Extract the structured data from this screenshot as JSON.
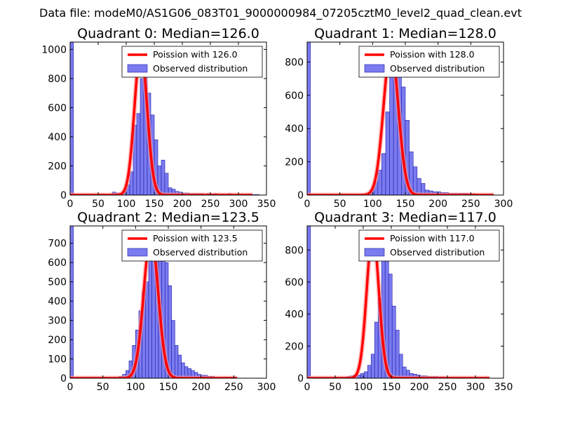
{
  "suptitle": "Data file: modeM0/AS1G06_083T01_9000000984_07205cztM0_level2_quad_clean.evt",
  "colors": {
    "bar_fill": "#7b7bf0",
    "bar_edge": "#1a1aa8",
    "poisson_line": "#ff0000",
    "poisson_halo": "#ff9a9a"
  },
  "chart_data": [
    {
      "type": "bar",
      "title": "Quadrant 0: Median=126.0",
      "legend": [
        "Poission with 126.0",
        "Observed distribution"
      ],
      "legend_position": "top-right",
      "xlim": [
        0,
        350
      ],
      "ylim": [
        0,
        1050
      ],
      "xticks": [
        0,
        50,
        100,
        150,
        200,
        250,
        300,
        350
      ],
      "yticks": [
        0,
        200,
        400,
        600,
        800,
        1000
      ],
      "bin_width": 6.25,
      "bin_start": 75,
      "counts": [
        20,
        15,
        10,
        25,
        70,
        160,
        480,
        560,
        800,
        850,
        700,
        550,
        380,
        200,
        240,
        150,
        50,
        40,
        25,
        20,
        15,
        15,
        10,
        10,
        10,
        10,
        5,
        10,
        5,
        10,
        5,
        5,
        5,
        10,
        5,
        5,
        5,
        5,
        5,
        3,
        3,
        3
      ],
      "edge_bar": {
        "x": 0,
        "width": 6,
        "value": 1050
      },
      "poisson": {
        "mean": 126.0,
        "peak": 1000,
        "sigma": 11.2,
        "x_range": [
          0,
          325
        ]
      }
    },
    {
      "type": "bar",
      "title": "Quadrant 1: Median=128.0",
      "legend": [
        "Poission with 128.0",
        "Observed distribution"
      ],
      "legend_position": "top-right",
      "xlim": [
        0,
        300
      ],
      "ylim": [
        0,
        920
      ],
      "xticks": [
        0,
        50,
        100,
        150,
        200,
        250,
        300
      ],
      "yticks": [
        0,
        200,
        400,
        600,
        800
      ],
      "bin_width": 6,
      "bin_start": 84,
      "counts": [
        5,
        10,
        30,
        80,
        150,
        250,
        500,
        720,
        800,
        780,
        650,
        450,
        260,
        170,
        100,
        70,
        30,
        25,
        20,
        20,
        15,
        15,
        10,
        10,
        10,
        10,
        10,
        8,
        8,
        5,
        5,
        5,
        5
      ],
      "edge_bar": {
        "x": 0,
        "width": 5,
        "value": 920
      },
      "poisson": {
        "mean": 128.0,
        "peak": 880,
        "sigma": 11.3,
        "x_range": [
          0,
          285
        ]
      }
    },
    {
      "type": "bar",
      "title": "Quadrant 2: Median=123.5",
      "legend": [
        "Poission with 123.5",
        "Observed distribution"
      ],
      "legend_position": "top-right",
      "xlim": [
        0,
        300
      ],
      "ylim": [
        0,
        790
      ],
      "xticks": [
        0,
        50,
        100,
        150,
        200,
        250,
        300
      ],
      "yticks": [
        0,
        100,
        200,
        300,
        400,
        500,
        600,
        700
      ],
      "bin_width": 5,
      "bin_start": 75,
      "counts": [
        10,
        20,
        40,
        90,
        170,
        250,
        350,
        450,
        500,
        650,
        720,
        750,
        740,
        640,
        600,
        480,
        300,
        170,
        120,
        80,
        60,
        50,
        40,
        30,
        20,
        15,
        15,
        10,
        10,
        5,
        5,
        5,
        5,
        5,
        5,
        5
      ],
      "edge_bar": {
        "x": 0,
        "width": 5,
        "value": 790
      },
      "poisson": {
        "mean": 123.5,
        "peak": 740,
        "sigma": 11.0,
        "x_range": [
          0,
          255
        ]
      }
    },
    {
      "type": "bar",
      "title": "Quadrant 3: Median=117.0",
      "legend": [
        "Poission with 117.0",
        "Observed distribution"
      ],
      "legend_position": "top-right",
      "xlim": [
        0,
        350
      ],
      "ylim": [
        0,
        950
      ],
      "xticks": [
        0,
        50,
        100,
        150,
        200,
        250,
        300,
        350
      ],
      "yticks": [
        0,
        200,
        400,
        600,
        800
      ],
      "bin_width": 6.25,
      "bin_start": 64,
      "counts": [
        5,
        10,
        15,
        20,
        20,
        30,
        40,
        80,
        150,
        350,
        500,
        900,
        860,
        650,
        450,
        300,
        150,
        70,
        50,
        30,
        25,
        20,
        15,
        15,
        10,
        10,
        10,
        8,
        8,
        5,
        5,
        5,
        5,
        5,
        5,
        5
      ],
      "edge_bar": {
        "x": 0,
        "width": 6,
        "value": 950
      },
      "poisson": {
        "mean": 117.0,
        "peak": 910,
        "sigma": 10.8,
        "x_range": [
          0,
          325
        ]
      }
    }
  ]
}
